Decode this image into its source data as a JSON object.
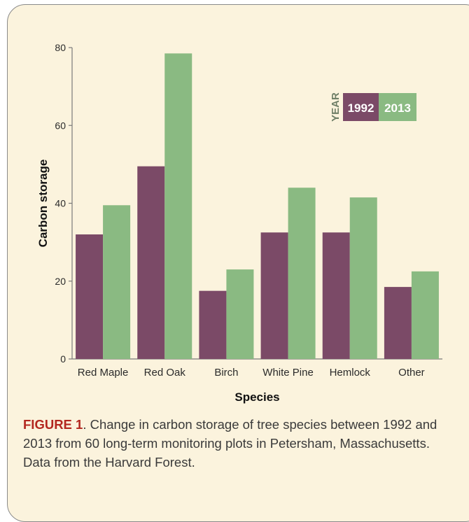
{
  "chart_data": {
    "type": "bar",
    "categories": [
      "Red Maple",
      "Red Oak",
      "Birch",
      "White Pine",
      "Hemlock",
      "Other"
    ],
    "series": [
      {
        "name": "1992",
        "color": "#7b4a67",
        "values": [
          32,
          49.5,
          17.5,
          32.5,
          32.5,
          18.5
        ]
      },
      {
        "name": "2013",
        "color": "#8aba82",
        "values": [
          39.5,
          78.5,
          23,
          44,
          41.5,
          22.5
        ]
      }
    ],
    "xlabel": "Species",
    "ylabel": "Carbon storage",
    "ylim": [
      0,
      80
    ],
    "yticks": [
      0,
      20,
      40,
      60,
      80
    ],
    "legend": {
      "title": "YEAR",
      "position": "top-right"
    },
    "grid": false
  },
  "caption": {
    "label": "FIGURE 1",
    "text": ". Change in carbon storage of tree species between 1992 and 2013 from 60 long-term monitoring plots in Petersham, Massachusetts.  Data from the Harvard Forest."
  }
}
